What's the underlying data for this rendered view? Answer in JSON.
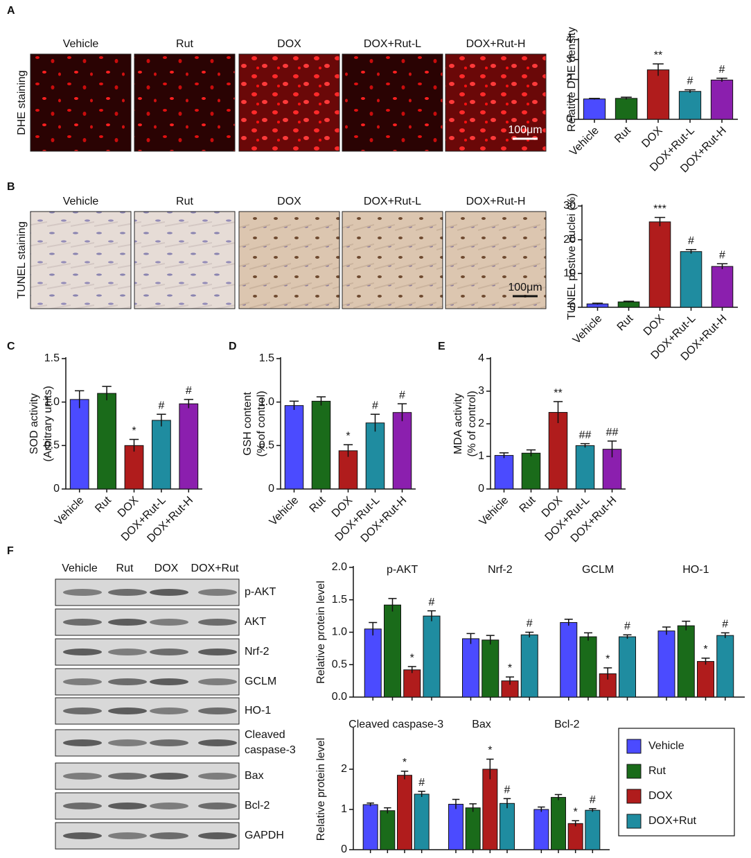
{
  "panel_labels": [
    "A",
    "B",
    "C",
    "D",
    "E",
    "F"
  ],
  "micrographs": [
    {
      "side_label": "DHE staining",
      "captions": [
        "Vehicle",
        "Rut",
        "DOX",
        "DOX+Rut-L",
        "DOX+Rut-H"
      ],
      "scale_bar": "100μm"
    },
    {
      "side_label": "TUNEL staining",
      "captions": [
        "Vehicle",
        "Rut",
        "DOX",
        "DOX+Rut-L",
        "DOX+Rut-H"
      ],
      "scale_bar": "100μm"
    }
  ],
  "blot": {
    "columns": [
      "Vehicle",
      "Rut",
      "DOX",
      "DOX+Rut"
    ],
    "rows": [
      "p-AKT",
      "AKT",
      "Nrf-2",
      "GCLM",
      "HO-1",
      [
        "Cleaved",
        "caspase-3"
      ],
      "Bax",
      "Bcl-2",
      "GAPDH"
    ]
  },
  "chart_data": [
    {
      "type": "bar",
      "ylabel": "Relative DHE density",
      "categories": [
        "Vehicle",
        "Rut",
        "DOX",
        "DOX+Rut-L",
        "DOX+Rut-H"
      ],
      "values": [
        1.02,
        1.05,
        2.48,
        1.4,
        1.97
      ],
      "errors": [
        0.03,
        0.06,
        0.3,
        0.08,
        0.09
      ],
      "annotations": [
        null,
        null,
        "**",
        "#",
        "#"
      ],
      "colors": [
        "#4b4bff",
        "#1a6b1a",
        "#b01c1c",
        "#1f8ca0",
        "#8b1fae"
      ],
      "ylim": [
        0,
        4
      ],
      "yticks": [
        0,
        1,
        2,
        3,
        4
      ]
    },
    {
      "type": "bar",
      "ylabel": "TUNEL postive nuclei (%)",
      "categories": [
        "Vehicle",
        "Rut",
        "DOX",
        "DOX+Rut-L",
        "DOX+Rut-H"
      ],
      "values": [
        1.0,
        1.6,
        25.3,
        16.5,
        12.1
      ],
      "errors": [
        0.2,
        0.2,
        1.3,
        0.6,
        0.8
      ],
      "annotations": [
        null,
        null,
        "***",
        "#",
        "#"
      ],
      "colors": [
        "#4b4bff",
        "#1a6b1a",
        "#b01c1c",
        "#1f8ca0",
        "#8b1fae"
      ],
      "ylim": [
        0,
        30
      ],
      "yticks": [
        0,
        10,
        20,
        30
      ]
    },
    {
      "type": "bar",
      "ylabel": [
        "SOD activity",
        "(Arbitrary units)"
      ],
      "categories": [
        "Vehicle",
        "Rut",
        "DOX",
        "DOX+Rut-L",
        "DOX+Rut-H"
      ],
      "values": [
        1.03,
        1.1,
        0.5,
        0.79,
        0.98
      ],
      "errors": [
        0.1,
        0.08,
        0.07,
        0.07,
        0.05
      ],
      "annotations": [
        null,
        null,
        "*",
        "#",
        "#"
      ],
      "colors": [
        "#4b4bff",
        "#1a6b1a",
        "#b01c1c",
        "#1f8ca0",
        "#8b1fae"
      ],
      "ylim": [
        0,
        1.5
      ],
      "yticks": [
        0,
        0.5,
        {
          "value": 1,
          "label": "1.0"
        },
        1.5
      ]
    },
    {
      "type": "bar",
      "ylabel": [
        "GSH content",
        "(% of control)"
      ],
      "categories": [
        "Vehicle",
        "Rut",
        "DOX",
        "DOX+Rut-L",
        "DOX+Rut-H"
      ],
      "values": [
        0.96,
        1.01,
        0.44,
        0.76,
        0.88
      ],
      "errors": [
        0.05,
        0.05,
        0.07,
        0.1,
        0.1
      ],
      "annotations": [
        null,
        null,
        "*",
        "#",
        "#"
      ],
      "colors": [
        "#4b4bff",
        "#1a6b1a",
        "#b01c1c",
        "#1f8ca0",
        "#8b1fae"
      ],
      "ylim": [
        0,
        1.5
      ],
      "yticks": [
        0,
        0.5,
        {
          "value": 1,
          "label": "1.0"
        },
        1.5
      ]
    },
    {
      "type": "bar",
      "ylabel": [
        "MDA activity",
        "(% of control)"
      ],
      "categories": [
        "Vehicle",
        "Rut",
        "DOX",
        "DOX+Rut-L",
        "DOX+Rut-H"
      ],
      "values": [
        1.03,
        1.1,
        2.35,
        1.33,
        1.22
      ],
      "errors": [
        0.08,
        0.1,
        0.33,
        0.06,
        0.25
      ],
      "annotations": [
        null,
        null,
        "**",
        "##",
        "##"
      ],
      "colors": [
        "#4b4bff",
        "#1a6b1a",
        "#b01c1c",
        "#1f8ca0",
        "#8b1fae"
      ],
      "ylim": [
        0,
        4
      ],
      "yticks": [
        0,
        1,
        2,
        3,
        4
      ]
    },
    {
      "type": "grouped-bar",
      "ylabel": "Relative protein level",
      "categories": [
        "p-AKT",
        "Nrf-2",
        "GCLM",
        "HO-1"
      ],
      "series": [
        {
          "color": "#4b4bff",
          "values": [
            1.05,
            0.9,
            1.15,
            1.02
          ],
          "errors": [
            0.1,
            0.08,
            0.05,
            0.06
          ],
          "annotations": [
            null,
            null,
            null,
            null
          ]
        },
        {
          "color": "#1a6b1a",
          "values": [
            1.42,
            0.88,
            0.93,
            1.1
          ],
          "errors": [
            0.1,
            0.07,
            0.06,
            0.07
          ],
          "annotations": [
            null,
            null,
            null,
            null
          ]
        },
        {
          "color": "#b01c1c",
          "values": [
            0.42,
            0.25,
            0.36,
            0.55
          ],
          "errors": [
            0.05,
            0.06,
            0.09,
            0.05
          ],
          "annotations": [
            "*",
            "*",
            "*",
            "*"
          ]
        },
        {
          "color": "#1f8ca0",
          "values": [
            1.25,
            0.96,
            0.93,
            0.95
          ],
          "errors": [
            0.08,
            0.04,
            0.03,
            0.04
          ],
          "annotations": [
            "#",
            "#",
            "#",
            "#"
          ]
        }
      ],
      "ylim": [
        0,
        2
      ],
      "yticks": [
        {
          "value": 0,
          "label": "0.0"
        },
        0.5,
        {
          "value": 1,
          "label": "1.0"
        },
        1.5,
        {
          "value": 2,
          "label": "2.0"
        }
      ]
    },
    {
      "type": "grouped-bar",
      "ylabel": "Relative protein level",
      "categories": [
        "Cleaved caspase-3",
        "Bax",
        "Bcl-2"
      ],
      "series": [
        {
          "name": "Vehicle",
          "color": "#4b4bff",
          "values": [
            1.12,
            1.13,
            1.0
          ],
          "errors": [
            0.04,
            0.12,
            0.06
          ],
          "annotations": [
            null,
            null,
            null
          ]
        },
        {
          "name": "Rut",
          "color": "#1a6b1a",
          "values": [
            0.97,
            1.04,
            1.3
          ],
          "errors": [
            0.07,
            0.1,
            0.07
          ],
          "annotations": [
            null,
            null,
            null
          ]
        },
        {
          "name": "DOX",
          "color": "#b01c1c",
          "values": [
            1.85,
            2.0,
            0.65
          ],
          "errors": [
            0.1,
            0.25,
            0.07
          ],
          "annotations": [
            "*",
            "*",
            "*"
          ]
        },
        {
          "name": "DOX+Rut",
          "color": "#1f8ca0",
          "values": [
            1.38,
            1.15,
            0.98
          ],
          "errors": [
            0.07,
            0.12,
            0.04
          ],
          "annotations": [
            "#",
            "#",
            "#"
          ]
        }
      ],
      "ylim": [
        0,
        3
      ],
      "yticks": [
        0,
        1,
        2
      ],
      "legend": true
    }
  ]
}
